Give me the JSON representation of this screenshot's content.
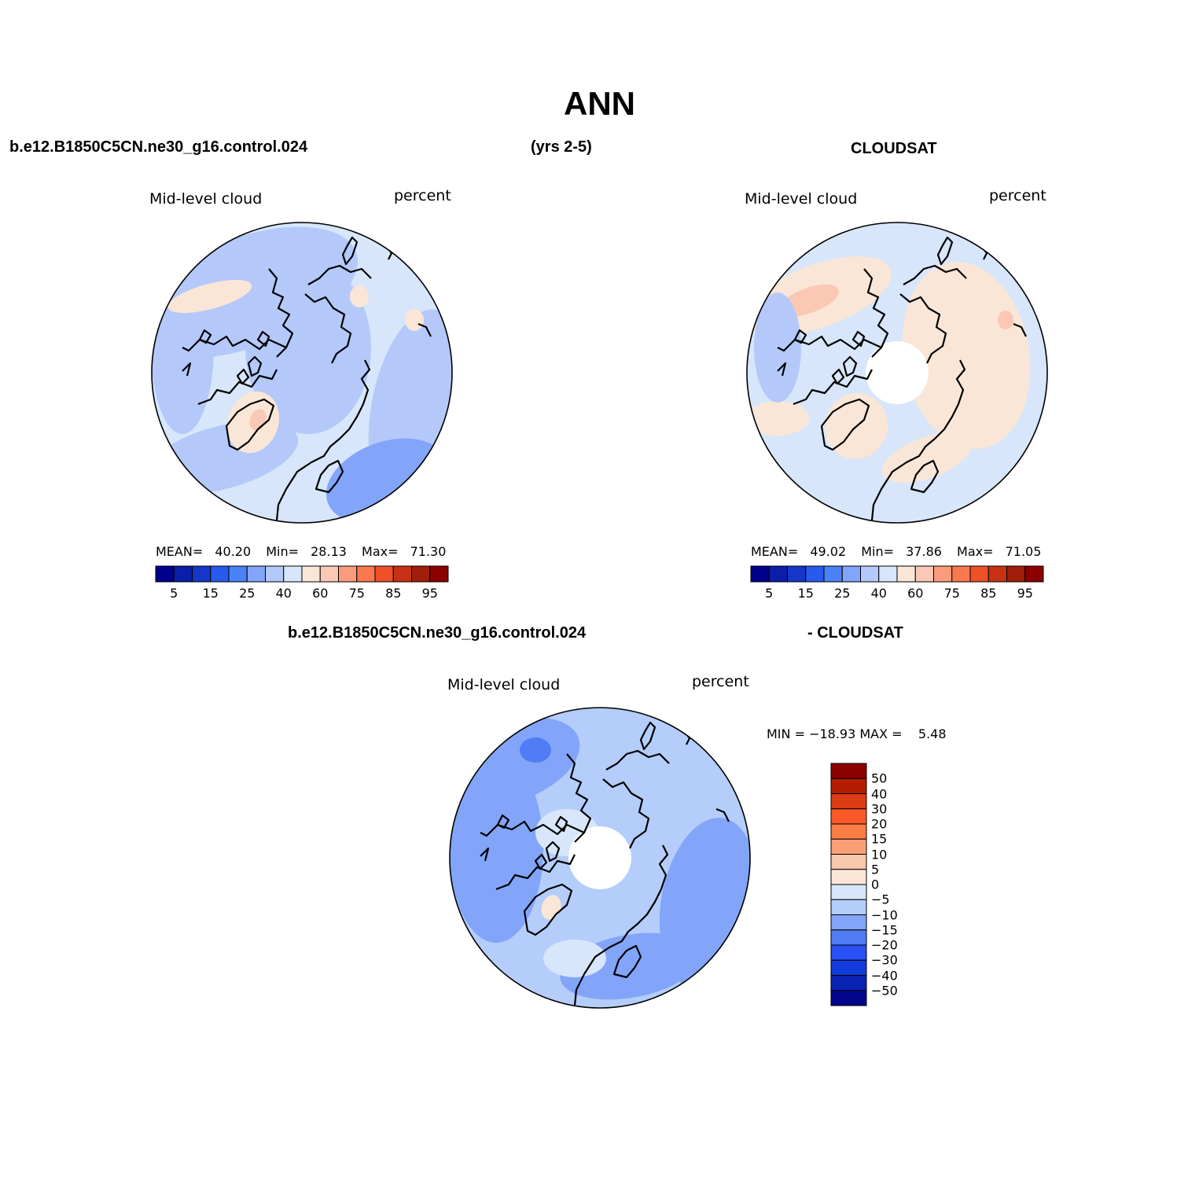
{
  "title": "ANN",
  "header": {
    "case_name": "b.e12.B1850C5CN.ne30_g16.control.024",
    "years": "(yrs 2-5)",
    "obs_name": "CLOUDSAT",
    "diff_case": "b.e12.B1850C5CN.ne30_g16.control.024",
    "diff_obs": "- CLOUDSAT"
  },
  "panels": {
    "model": {
      "label": "Mid-level cloud",
      "units": "percent",
      "mean_label": "MEAN=",
      "mean": "40.20",
      "min_label": "Min=",
      "min": "28.13",
      "max_label": "Max=",
      "max": "71.30",
      "polar_hole": false
    },
    "obs": {
      "label": "Mid-level cloud",
      "units": "percent",
      "mean_label": "MEAN=",
      "mean": "49.02",
      "min_label": "Min=",
      "min": "37.86",
      "max_label": "Max=",
      "max": "71.05",
      "polar_hole": true
    },
    "diff": {
      "label": "Mid-level cloud",
      "units": "percent",
      "minmax_text": "MIN = −18.93 MAX =    5.48",
      "polar_hole": true
    }
  },
  "colorbar_abs": {
    "colors": [
      "#00008c",
      "#0a1ea8",
      "#1437c8",
      "#285af0",
      "#4b82f5",
      "#82a5fa",
      "#b4c8fa",
      "#d7e6fa",
      "#fae6d7",
      "#fac8b4",
      "#fa9b7d",
      "#fa7850",
      "#f05028",
      "#c83214",
      "#a01e0a",
      "#8c0000"
    ],
    "tick_labels": [
      "5",
      "15",
      "25",
      "40",
      "60",
      "75",
      "85",
      "95"
    ]
  },
  "colorbar_diff": {
    "colors_top_to_bottom": [
      "#8c0000",
      "#b41e00",
      "#dc3c14",
      "#fa5a28",
      "#fa7d46",
      "#faa078",
      "#fac8aa",
      "#fae6d7",
      "#d7e6fa",
      "#b4cdfa",
      "#82a5fa",
      "#507df5",
      "#2850f5",
      "#143cdc",
      "#0a23b4",
      "#00058c"
    ],
    "tick_labels": [
      "50",
      "40",
      "30",
      "20",
      "15",
      "10",
      "5",
      "0",
      "−5",
      "−10",
      "−15",
      "−20",
      "−30",
      "−40",
      "−50"
    ]
  },
  "map_colors": {
    "model_base": "#d7e6fa",
    "model_mid": "#b4c8fa",
    "model_dark": "#82a5fa",
    "model_warm": "#fae6d7",
    "model_warm2": "#fac8b4",
    "obs_base": "#d7e6fa",
    "obs_warm": "#fae6d7",
    "obs_warm2": "#fac8b4",
    "obs_mid": "#b4c8fa",
    "diff_base": "#b4cdfa",
    "diff_dark": "#82a5fa",
    "diff_darker": "#507df5",
    "diff_light": "#d7e6fa",
    "diff_warm": "#fae6d7"
  }
}
